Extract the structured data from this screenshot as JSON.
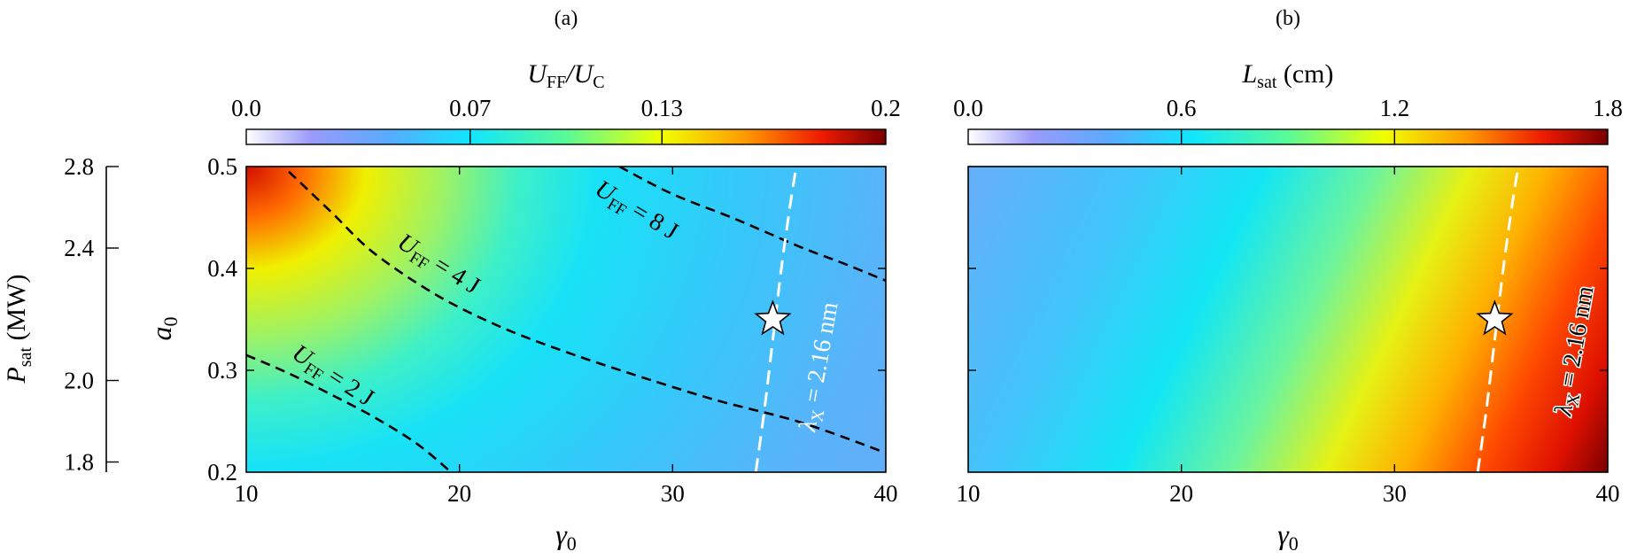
{
  "chart_data": [
    {
      "type": "heatmap",
      "panel_label": "(a)",
      "colorbar": {
        "label_base": "U",
        "label_sub1": "FF",
        "label_mid": "/U",
        "label_sub2": "C",
        "range": [
          0,
          0.2
        ],
        "ticks": [
          0,
          0.07,
          0.13,
          0.2
        ],
        "tick_labels": [
          "0.0",
          "0.07",
          "0.13",
          "0.2"
        ]
      },
      "x_label": "γ",
      "x_label_sub": "0",
      "y_label": "a",
      "y_label_sub": "0",
      "xlim": [
        10,
        40
      ],
      "ylim": [
        0.2,
        0.5
      ],
      "x_ticks": [
        10,
        20,
        30,
        40
      ],
      "x_tick_labels": [
        "10",
        "20",
        "30",
        "40"
      ],
      "y_ticks": [
        0.2,
        0.3,
        0.4,
        0.5
      ],
      "y_tick_labels": [
        "0.2",
        "0.3",
        "0.4",
        "0.5"
      ],
      "secondary_y_axis": {
        "label": "P",
        "label_sub": "sat",
        "label_unit": " (MW)",
        "ticks": [
          1.8,
          2.0,
          2.4,
          2.8
        ],
        "tick_labels": [
          "1.8",
          "2.0",
          "2.4",
          "2.8"
        ],
        "tick_positions_a0": [
          0.21,
          0.29,
          0.42,
          0.5
        ]
      },
      "contours": [
        {
          "label_base": "U",
          "label_sub": "FF",
          "label_value": " = 2 J",
          "points": [
            [
              10,
              0.315
            ],
            [
              12,
              0.297
            ],
            [
              14,
              0.276
            ],
            [
              16,
              0.254
            ],
            [
              18,
              0.228
            ],
            [
              19.5,
              0.202
            ]
          ]
        },
        {
          "label_base": "U",
          "label_sub": "FF",
          "label_value": " = 4 J",
          "points": [
            [
              12,
              0.495
            ],
            [
              14,
              0.455
            ],
            [
              16,
              0.415
            ],
            [
              19,
              0.373
            ],
            [
              22,
              0.342
            ],
            [
              25,
              0.318
            ],
            [
              28,
              0.297
            ],
            [
              32,
              0.271
            ],
            [
              36,
              0.249
            ],
            [
              40,
              0.219
            ]
          ]
        },
        {
          "label_base": "U",
          "label_sub": "FF",
          "label_value": " = 8 J",
          "points": [
            [
              27.5,
              0.5
            ],
            [
              30,
              0.473
            ],
            [
              33,
              0.448
            ],
            [
              36,
              0.421
            ],
            [
              38,
              0.405
            ],
            [
              40,
              0.388
            ]
          ]
        }
      ],
      "wavelength_line": {
        "label_base": "λ",
        "label_sub": "X",
        "label_value": " = 2.16 nm",
        "points": [
          [
            33.9,
            0.2
          ],
          [
            34.3,
            0.26
          ],
          [
            34.7,
            0.33
          ],
          [
            35.1,
            0.4
          ],
          [
            35.5,
            0.46
          ],
          [
            35.8,
            0.5
          ]
        ]
      },
      "marker": {
        "shape": "star",
        "x": 34.7,
        "y": 0.35
      }
    },
    {
      "type": "heatmap",
      "panel_label": "(b)",
      "colorbar": {
        "label_base": "L",
        "label_sub": "sat",
        "label_unit": " (cm)",
        "range": [
          0,
          1.8
        ],
        "ticks": [
          0,
          0.6,
          1.2,
          1.8
        ],
        "tick_labels": [
          "0.0",
          "0.6",
          "1.2",
          "1.8"
        ]
      },
      "x_label": "γ",
      "x_label_sub": "0",
      "xlim": [
        10,
        40
      ],
      "ylim": [
        0.2,
        0.5
      ],
      "x_ticks": [
        10,
        20,
        30,
        40
      ],
      "x_tick_labels": [
        "10",
        "20",
        "30",
        "40"
      ],
      "y_ticks": [
        0.2,
        0.3,
        0.4,
        0.5
      ],
      "wavelength_line": {
        "label_base": "λ",
        "label_sub": "X",
        "label_value": " = 2.16 nm",
        "points": [
          [
            33.9,
            0.2
          ],
          [
            34.3,
            0.26
          ],
          [
            34.7,
            0.33
          ],
          [
            35.1,
            0.4
          ],
          [
            35.5,
            0.46
          ],
          [
            35.8,
            0.5
          ]
        ]
      },
      "marker": {
        "shape": "star",
        "x": 34.7,
        "y": 0.35
      }
    }
  ]
}
